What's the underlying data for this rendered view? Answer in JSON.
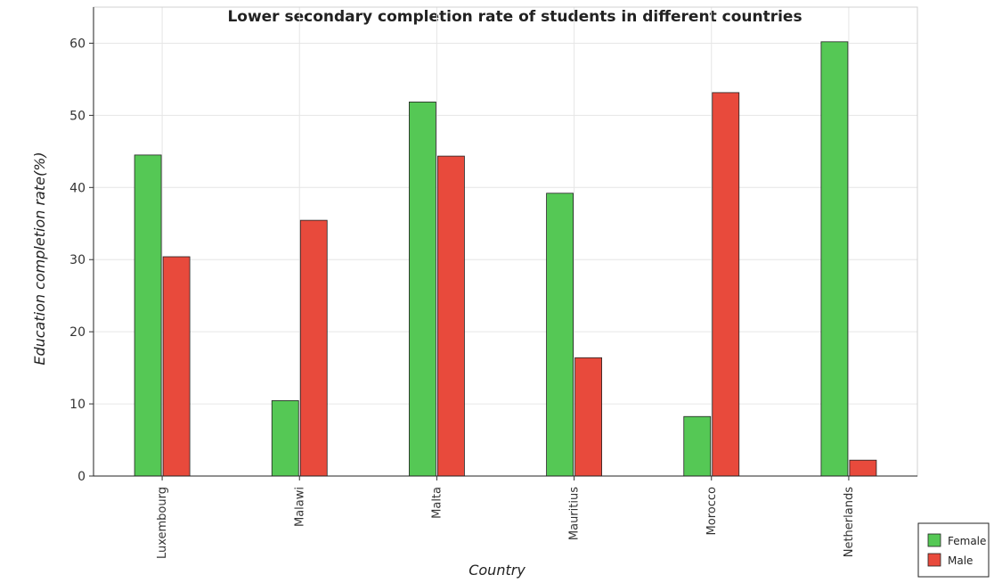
{
  "chart_data": {
    "type": "bar",
    "title": "Lower secondary completion rate of students in different countries",
    "xlabel": "Country",
    "ylabel": "Education completion rate(%)",
    "categories": [
      "Luxembourg",
      "Malawi",
      "Malta",
      "Mauritius",
      "Morocco",
      "Netherlands"
    ],
    "series": [
      {
        "name": "Female",
        "color": "#55c855",
        "values": [
          44.5,
          10.45,
          51.85,
          39.2,
          8.25,
          60.2
        ]
      },
      {
        "name": "Male",
        "color": "#e84a3c",
        "values": [
          30.4,
          35.45,
          44.35,
          16.4,
          53.15,
          2.2
        ]
      }
    ],
    "ylim": [
      0,
      65
    ],
    "yticks": [
      0,
      10,
      20,
      30,
      40,
      50,
      60
    ],
    "grid": true,
    "legend_position": "bottom-right",
    "bar_edge_color": "#222222"
  }
}
